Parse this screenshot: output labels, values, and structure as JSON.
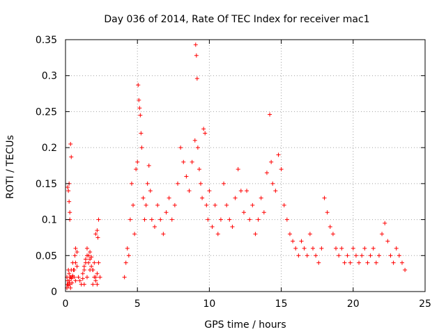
{
  "chart_data": {
    "type": "scatter",
    "title": "Day 036 of 2014, Rate Of TEC Index for receiver mac1",
    "xlabel": "GPS time / hours",
    "ylabel": "ROTI / TECUs",
    "xlim": [
      0,
      25
    ],
    "ylim": [
      0,
      0.35
    ],
    "x_ticks": [
      "0",
      "5",
      "10",
      "15",
      "20",
      "25"
    ],
    "y_ticks": [
      "0",
      "0.05",
      "0.1",
      "0.15",
      "0.2",
      "0.25",
      "0.3",
      "0.35"
    ],
    "grid": true,
    "marker": "+",
    "color": "#ff0000",
    "series": [
      {
        "x": [
          0.1,
          0.15,
          0.2,
          0.25,
          0.3,
          0.35,
          0.4,
          0.45,
          0.5,
          0.6,
          0.7,
          0.8,
          0.9,
          1.0,
          1.1,
          1.2,
          1.3,
          1.4,
          1.5,
          1.6,
          1.7,
          1.8,
          1.9,
          2.0,
          2.1,
          2.2,
          2.3,
          2.4,
          0.12,
          0.2,
          0.28,
          0.35,
          0.45,
          0.55,
          0.65,
          0.7,
          0.8,
          1.2,
          1.3,
          1.4,
          1.5,
          1.6,
          1.7,
          1.8,
          1.9,
          2.0,
          2.1,
          2.2,
          2.25,
          2.3,
          0.1,
          0.18,
          0.25,
          0.3,
          0.4,
          0.5,
          0.6,
          0.7,
          1.3,
          1.5,
          1.7,
          1.9,
          2.1,
          2.2,
          0.15,
          0.2,
          0.25,
          0.3,
          0.35,
          0.4,
          0.3,
          0.25
        ],
        "y": [
          0.02,
          0.015,
          0.03,
          0.025,
          0.01,
          0.02,
          0.018,
          0.012,
          0.022,
          0.03,
          0.04,
          0.035,
          0.02,
          0.015,
          0.01,
          0.018,
          0.03,
          0.045,
          0.05,
          0.04,
          0.055,
          0.048,
          0.03,
          0.02,
          0.015,
          0.025,
          0.04,
          0.02,
          0.01,
          0.008,
          0.012,
          0.005,
          0.02,
          0.03,
          0.05,
          0.06,
          0.055,
          0.025,
          0.035,
          0.04,
          0.06,
          0.05,
          0.045,
          0.035,
          0.03,
          0.04,
          0.08,
          0.085,
          0.075,
          0.1,
          0.005,
          0.01,
          0.015,
          0.02,
          0.03,
          0.04,
          0.02,
          0.015,
          0.01,
          0.02,
          0.03,
          0.01,
          0.02,
          0.01,
          0.145,
          0.14,
          0.125,
          0.11,
          0.205,
          0.187,
          0.1,
          0.15
        ]
      },
      {
        "x": [
          4.1,
          4.2,
          4.3,
          4.4,
          4.5,
          4.6,
          4.7,
          4.8,
          4.9,
          5.0,
          5.05,
          5.1,
          5.15,
          5.2,
          5.25,
          5.3,
          5.4,
          5.5,
          5.6,
          5.7,
          5.8,
          5.9,
          6.0,
          6.2,
          6.4,
          6.6,
          6.8,
          7.0,
          7.2,
          7.4,
          7.6,
          7.8,
          8.0,
          8.2,
          8.4,
          8.6,
          8.8,
          9.0,
          9.05,
          9.1,
          9.15,
          9.2,
          9.3,
          9.4,
          9.5,
          9.6,
          9.7,
          9.8,
          9.9,
          10.0,
          10.2,
          10.4,
          10.6,
          10.8,
          11.0,
          11.2,
          11.4,
          11.6,
          11.8,
          12.0,
          12.2,
          12.4,
          12.6,
          12.8,
          13.0,
          13.2,
          13.4,
          13.6,
          13.8,
          14.0,
          14.2,
          14.3,
          14.4,
          14.6,
          14.8,
          15.0,
          15.2,
          15.4,
          15.6,
          15.8,
          16.0,
          16.2,
          16.4,
          16.6,
          16.8,
          17.0,
          17.2,
          17.4,
          17.6,
          17.8,
          18.0,
          18.2,
          18.4,
          18.6,
          18.8,
          19.0,
          19.2,
          19.4,
          19.6,
          19.8,
          20.0,
          20.2,
          20.4,
          20.6,
          20.8,
          21.0,
          21.2,
          21.4,
          21.6,
          21.8,
          22.0,
          22.2,
          22.4,
          22.6,
          22.8,
          23.0,
          23.2,
          23.4,
          23.6
        ],
        "y": [
          0.02,
          0.04,
          0.06,
          0.05,
          0.1,
          0.15,
          0.12,
          0.08,
          0.17,
          0.18,
          0.287,
          0.266,
          0.255,
          0.245,
          0.22,
          0.2,
          0.13,
          0.1,
          0.12,
          0.15,
          0.175,
          0.14,
          0.1,
          0.09,
          0.12,
          0.1,
          0.08,
          0.11,
          0.13,
          0.1,
          0.12,
          0.15,
          0.2,
          0.18,
          0.16,
          0.14,
          0.18,
          0.21,
          0.343,
          0.328,
          0.296,
          0.2,
          0.17,
          0.15,
          0.13,
          0.226,
          0.22,
          0.12,
          0.1,
          0.14,
          0.09,
          0.12,
          0.08,
          0.1,
          0.15,
          0.12,
          0.1,
          0.09,
          0.13,
          0.17,
          0.14,
          0.11,
          0.14,
          0.1,
          0.12,
          0.08,
          0.1,
          0.13,
          0.11,
          0.165,
          0.246,
          0.18,
          0.15,
          0.14,
          0.19,
          0.17,
          0.12,
          0.1,
          0.08,
          0.07,
          0.06,
          0.05,
          0.07,
          0.06,
          0.05,
          0.08,
          0.06,
          0.05,
          0.04,
          0.06,
          0.13,
          0.11,
          0.09,
          0.08,
          0.06,
          0.05,
          0.06,
          0.04,
          0.05,
          0.04,
          0.06,
          0.05,
          0.04,
          0.05,
          0.06,
          0.04,
          0.05,
          0.06,
          0.04,
          0.05,
          0.08,
          0.095,
          0.07,
          0.05,
          0.04,
          0.06,
          0.05,
          0.04,
          0.03
        ]
      }
    ]
  }
}
